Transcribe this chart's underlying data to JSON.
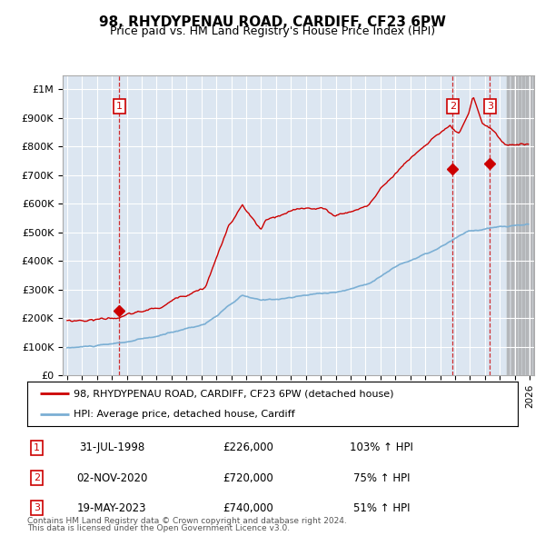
{
  "title": "98, RHYDYPENAU ROAD, CARDIFF, CF23 6PW",
  "subtitle": "Price paid vs. HM Land Registry's House Price Index (HPI)",
  "fig_bg_color": "#ffffff",
  "plot_bg_color": "#dce6f1",
  "hpi_color": "#7bafd4",
  "property_color": "#cc0000",
  "ylim": [
    0,
    1050000
  ],
  "yticks": [
    0,
    100000,
    200000,
    300000,
    400000,
    500000,
    600000,
    700000,
    800000,
    900000,
    1000000
  ],
  "ytick_labels": [
    "£0",
    "£100K",
    "£200K",
    "£300K",
    "£400K",
    "£500K",
    "£600K",
    "£700K",
    "£800K",
    "£900K",
    "£1M"
  ],
  "sale_prices": [
    226000,
    720000,
    740000
  ],
  "sale_labels": [
    "1",
    "2",
    "3"
  ],
  "sale_date_strs": [
    "31-JUL-1998",
    "02-NOV-2020",
    "19-MAY-2023"
  ],
  "sale_price_strs": [
    "£226,000",
    "£720,000",
    "£740,000"
  ],
  "sale_hpi_strs": [
    "103% ↑ HPI",
    "75% ↑ HPI",
    "51% ↑ HPI"
  ],
  "legend_property_label": "98, RHYDYPENAU ROAD, CARDIFF, CF23 6PW (detached house)",
  "legend_hpi_label": "HPI: Average price, detached house, Cardiff",
  "footer1": "Contains HM Land Registry data © Crown copyright and database right 2024.",
  "footer2": "This data is licensed under the Open Government Licence v3.0.",
  "grid_color": "#ffffff",
  "xstart_year": 1995,
  "xend_year": 2026
}
